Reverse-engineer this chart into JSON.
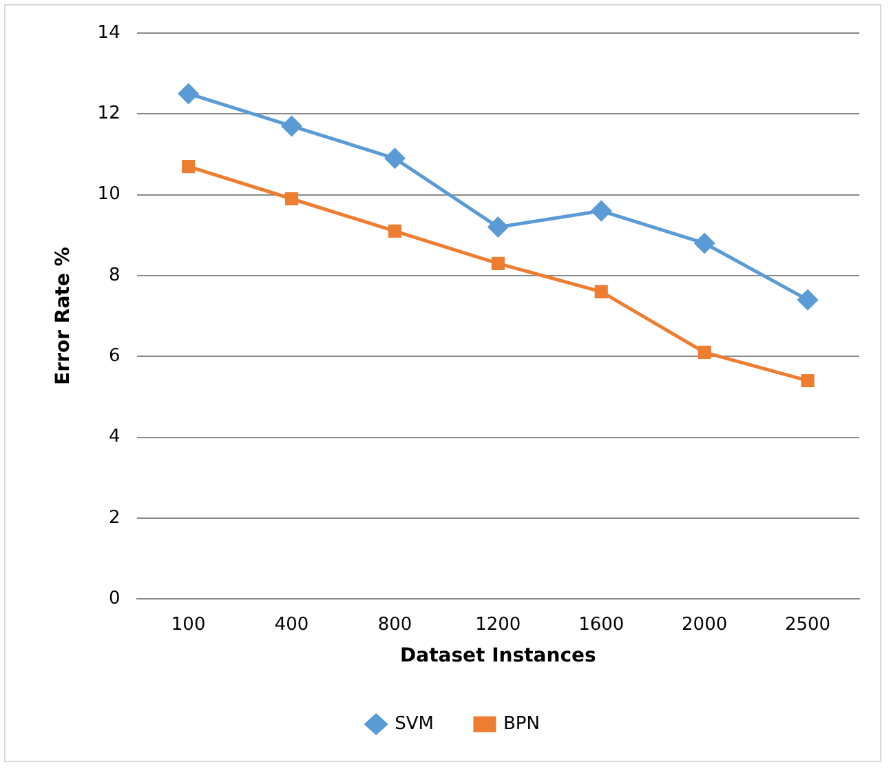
{
  "chart_data": {
    "type": "line",
    "xlabel": "Dataset Instances",
    "ylabel": "Error Rate %",
    "categories": [
      "100",
      "400",
      "800",
      "1200",
      "1600",
      "2000",
      "2500"
    ],
    "series": [
      {
        "name": "SVM",
        "color": "#5b9bd5",
        "marker": "diamond",
        "values": [
          12.5,
          11.7,
          10.9,
          9.2,
          9.6,
          8.8,
          7.4
        ]
      },
      {
        "name": "BPN",
        "color": "#ed7d31",
        "marker": "square",
        "values": [
          10.7,
          9.9,
          9.1,
          8.3,
          7.6,
          6.1,
          5.4
        ]
      }
    ],
    "ylim": [
      0,
      14
    ],
    "yticks": [
      0,
      2,
      4,
      6,
      8,
      10,
      12,
      14
    ],
    "grid": "y",
    "legend": "bottom"
  }
}
